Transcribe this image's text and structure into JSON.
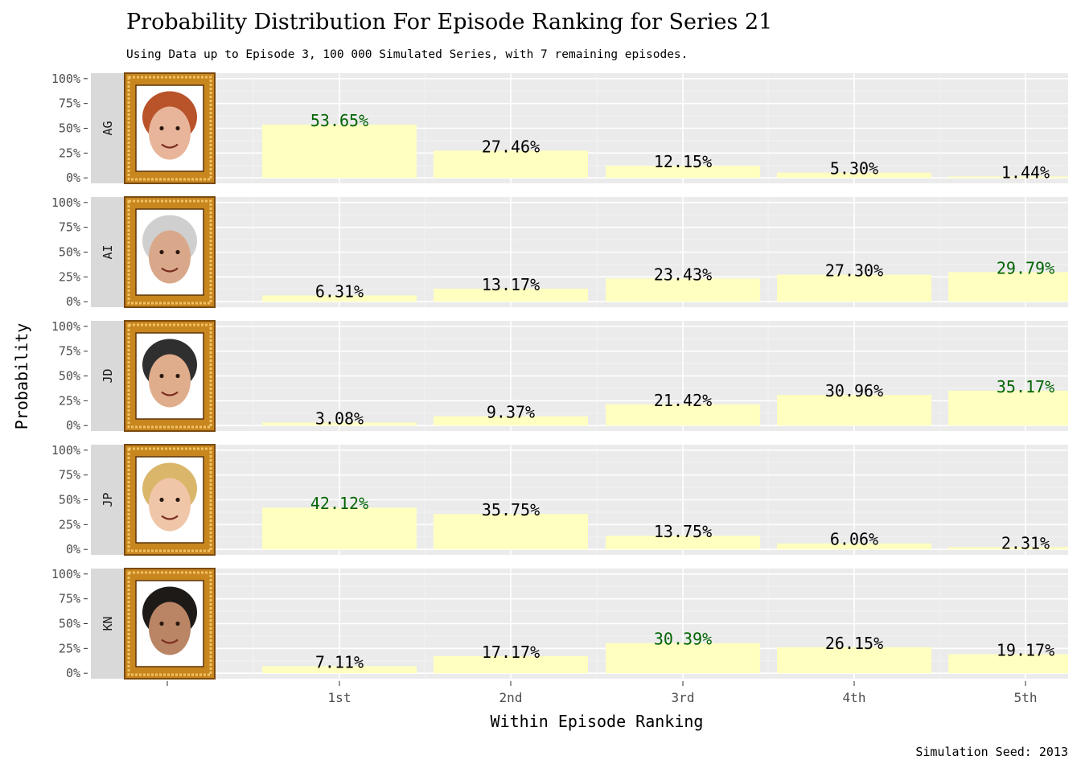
{
  "chart_data": {
    "type": "bar",
    "title": "Probability Distribution For Episode Ranking for Series 21",
    "subtitle": "Using Data up to Episode 3, 100 000 Simulated Series, with 7 remaining episodes.",
    "xlabel": "Within Episode Ranking",
    "ylabel": "Probability",
    "caption": "Simulation Seed: 2013",
    "categories": [
      "1st",
      "2nd",
      "3rd",
      "4th",
      "5th"
    ],
    "y_ticks": [
      "0%",
      "25%",
      "50%",
      "75%",
      "100%"
    ],
    "ylim": [
      0,
      1
    ],
    "grid": true,
    "legend": "none",
    "colors": {
      "bar": "#ffffc0",
      "panel": "#ebebeb",
      "strip": "#d9d9d9",
      "label_default": "#000000",
      "label_max": "#006400",
      "frame": "#c8861f"
    },
    "facets": [
      {
        "name": "AG",
        "values": [
          0.5365,
          0.2746,
          0.1215,
          0.053,
          0.0144
        ],
        "labels": [
          "53.65%",
          "27.46%",
          "12.15%",
          "5.30%",
          "1.44%"
        ],
        "max_index": 0,
        "skin": "#e8b49a",
        "hair": "#b8532a"
      },
      {
        "name": "AI",
        "values": [
          0.0631,
          0.1317,
          0.2343,
          0.273,
          0.2979
        ],
        "labels": [
          "6.31%",
          "13.17%",
          "23.43%",
          "27.30%",
          "29.79%"
        ],
        "max_index": 4,
        "skin": "#d9a88a",
        "hair": "#cfcfcf"
      },
      {
        "name": "JD",
        "values": [
          0.0308,
          0.0937,
          0.2142,
          0.3096,
          0.3517
        ],
        "labels": [
          "3.08%",
          "9.37%",
          "21.42%",
          "30.96%",
          "35.17%"
        ],
        "max_index": 4,
        "skin": "#e0ad8c",
        "hair": "#2f2f2f"
      },
      {
        "name": "JP",
        "values": [
          0.4212,
          0.3575,
          0.1375,
          0.0606,
          0.0231
        ],
        "labels": [
          "42.12%",
          "35.75%",
          "13.75%",
          "6.06%",
          "2.31%"
        ],
        "max_index": 0,
        "skin": "#f0c6a8",
        "hair": "#d9b66a"
      },
      {
        "name": "KN",
        "values": [
          0.0711,
          0.1717,
          0.3039,
          0.2615,
          0.1917
        ],
        "labels": [
          "7.11%",
          "17.17%",
          "30.39%",
          "26.15%",
          "19.17%"
        ],
        "max_index": 2,
        "skin": "#b98565",
        "hair": "#1e1a18"
      }
    ]
  }
}
